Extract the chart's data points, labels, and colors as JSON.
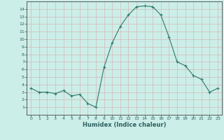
{
  "x": [
    0,
    1,
    2,
    3,
    4,
    5,
    6,
    7,
    8,
    9,
    10,
    11,
    12,
    13,
    14,
    15,
    16,
    17,
    18,
    19,
    20,
    21,
    22,
    23
  ],
  "y": [
    3.5,
    3.0,
    3.0,
    2.8,
    3.2,
    2.5,
    2.7,
    1.5,
    1.0,
    6.3,
    9.5,
    11.7,
    13.2,
    14.3,
    14.4,
    14.3,
    13.2,
    10.3,
    7.0,
    6.5,
    5.2,
    4.7,
    3.0,
    3.5
  ],
  "xlim": [
    -0.5,
    23.5
  ],
  "ylim": [
    0,
    15
  ],
  "yticks": [
    1,
    2,
    3,
    4,
    5,
    6,
    7,
    8,
    9,
    10,
    11,
    12,
    13,
    14
  ],
  "xticks": [
    0,
    1,
    2,
    3,
    4,
    5,
    6,
    7,
    8,
    9,
    10,
    11,
    12,
    13,
    14,
    15,
    16,
    17,
    18,
    19,
    20,
    21,
    22,
    23
  ],
  "xlabel": "Humidex (Indice chaleur)",
  "line_color": "#2d7a6b",
  "marker": "+",
  "bg_color": "#cceee8",
  "grid_color": "#d4b8b8",
  "text_color": "#2d6060"
}
